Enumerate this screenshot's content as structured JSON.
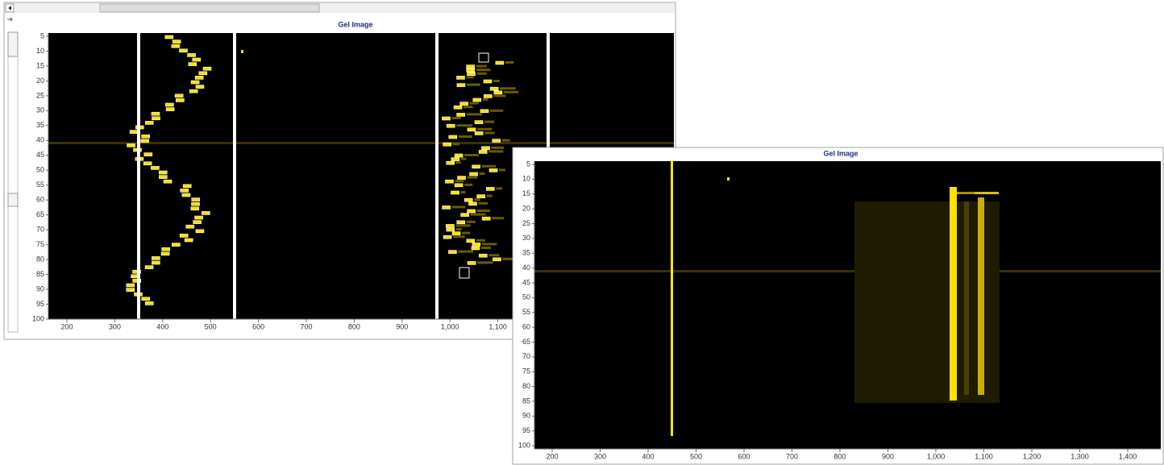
{
  "window1": {
    "title": "Gel Image",
    "x_ticks": [
      "200",
      "300",
      "400",
      "500",
      "600",
      "700",
      "800",
      "900",
      "1,000",
      "1,100"
    ],
    "y_ticks": [
      "5",
      "10",
      "15",
      "20",
      "25",
      "30",
      "35",
      "40",
      "45",
      "50",
      "55",
      "60",
      "65",
      "70",
      "75",
      "80",
      "85",
      "90",
      "95",
      "100"
    ]
  },
  "window2": {
    "title": "Gel Image",
    "x_ticks": [
      "200",
      "300",
      "400",
      "500",
      "600",
      "700",
      "800",
      "900",
      "1,000",
      "1,100",
      "1,200",
      "1,300",
      "1,400"
    ],
    "y_ticks": [
      "5",
      "10",
      "15",
      "20",
      "25",
      "30",
      "35",
      "40",
      "45",
      "50",
      "55",
      "60",
      "65",
      "70",
      "75",
      "80",
      "85",
      "90",
      "95",
      "100"
    ]
  }
}
